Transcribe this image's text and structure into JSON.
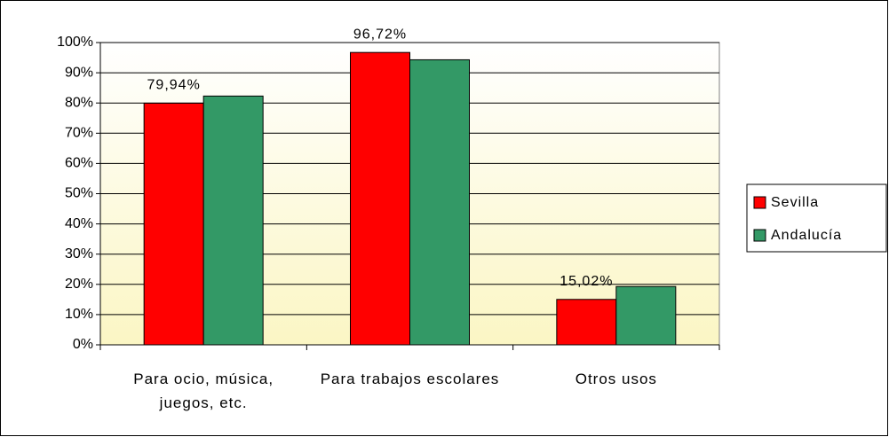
{
  "chart_data": {
    "type": "bar",
    "categories": [
      "Para ocio, música, juegos, etc.",
      "Para trabajos escolares",
      "Otros usos"
    ],
    "series": [
      {
        "name": "Sevilla",
        "color": "#ff0000",
        "values": [
          79.94,
          96.72,
          15.02
        ],
        "value_labels": [
          "79,94%",
          "96,72%",
          "15,02%"
        ]
      },
      {
        "name": "Andalucía",
        "color": "#339966",
        "values": [
          82.3,
          94.3,
          19.3
        ]
      }
    ],
    "ylim": [
      0,
      100
    ],
    "yticks": [
      {
        "value": 0,
        "label": "0%"
      },
      {
        "value": 10,
        "label": "10%"
      },
      {
        "value": 20,
        "label": "20%"
      },
      {
        "value": 30,
        "label": "30%"
      },
      {
        "value": 40,
        "label": "40%"
      },
      {
        "value": 50,
        "label": "50%"
      },
      {
        "value": 60,
        "label": "60%"
      },
      {
        "value": 70,
        "label": "70%"
      },
      {
        "value": 80,
        "label": "80%"
      },
      {
        "value": 90,
        "label": "90%"
      },
      {
        "value": 100,
        "label": "100%"
      }
    ],
    "grid": true,
    "legend": "right"
  }
}
